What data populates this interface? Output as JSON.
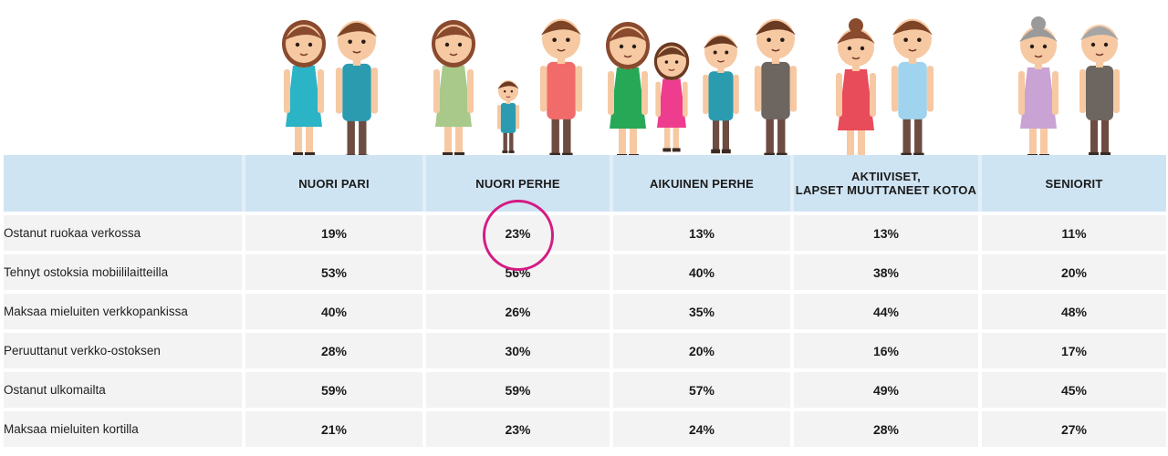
{
  "chart_data": {
    "type": "table",
    "columns": [
      "",
      "NUORI PARI",
      "NUORI PERHE",
      "AIKUINEN PERHE",
      "AKTIIVISET,\nLAPSET MUUTTANEET KOTOA",
      "SENIORIT"
    ],
    "rows": [
      {
        "label": "Ostanut ruokaa verkossa",
        "values": [
          "19%",
          "23%",
          "13%",
          "13%",
          "11%"
        ]
      },
      {
        "label": "Tehnyt ostoksia mobiililaitteilla",
        "values": [
          "53%",
          "56%",
          "40%",
          "38%",
          "20%"
        ]
      },
      {
        "label": "Maksaa mieluiten verkkopankissa",
        "values": [
          "40%",
          "26%",
          "35%",
          "44%",
          "48%"
        ]
      },
      {
        "label": "Peruuttanut verkko-ostoksen",
        "values": [
          "28%",
          "30%",
          "20%",
          "16%",
          "17%"
        ]
      },
      {
        "label": "Ostanut ulkomailta",
        "values": [
          "59%",
          "59%",
          "57%",
          "49%",
          "45%"
        ]
      },
      {
        "label": "Maksaa mieluiten kortilla",
        "values": [
          "21%",
          "23%",
          "24%",
          "28%",
          "27%"
        ]
      }
    ],
    "highlighted_cell": {
      "row": 0,
      "column": 2
    }
  },
  "colors": {
    "header_bg": "#cfe4f3",
    "cell_bg": "#f3f3f3",
    "highlight": "#d41b84"
  },
  "illustration": {
    "groups": [
      "young-couple",
      "young-family",
      "adult-family",
      "active-couple",
      "senior-couple"
    ]
  }
}
